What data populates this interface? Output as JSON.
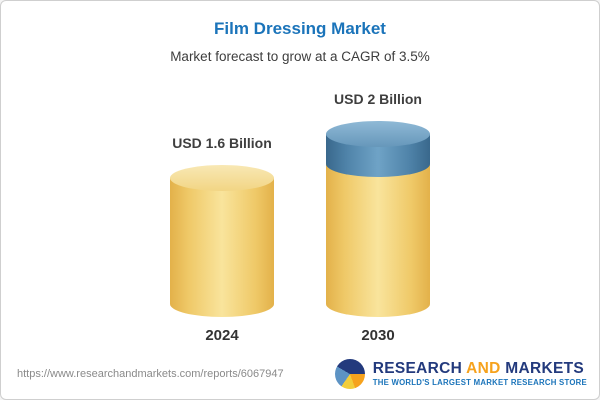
{
  "header": {
    "title": "Film Dressing Market",
    "subtitle": "Market forecast to grow at a CAGR of 3.5%"
  },
  "chart_data": {
    "type": "bar",
    "categories": [
      "2024",
      "2030"
    ],
    "values": [
      1.6,
      2
    ],
    "unit": "USD Billion",
    "cagr_percent": 3.5,
    "title": "Film Dressing Market",
    "subtitle": "Market forecast to grow at a CAGR of 3.5%",
    "bars": [
      {
        "year": "2024",
        "value": 1.6,
        "label": "USD 1.6 Billion",
        "color": "#f2cd6d"
      },
      {
        "year": "2030",
        "value": 2,
        "label": "USD 2 Billion",
        "color": "#f2cd6d",
        "growth_segment_color": "#4e86ad"
      }
    ],
    "colors": {
      "bar_yellow": "#f2cd6d",
      "growth_blue": "#4e86ad",
      "title_blue": "#1b74ba"
    },
    "legend": "none",
    "grid": false
  },
  "footer": {
    "url": "https://www.researchandmarkets.com/reports/6067947",
    "logo": {
      "word1": "RESEARCH",
      "word2": "AND",
      "word3": "MARKETS",
      "tagline": "THE WORLD'S LARGEST MARKET RESEARCH STORE"
    }
  }
}
